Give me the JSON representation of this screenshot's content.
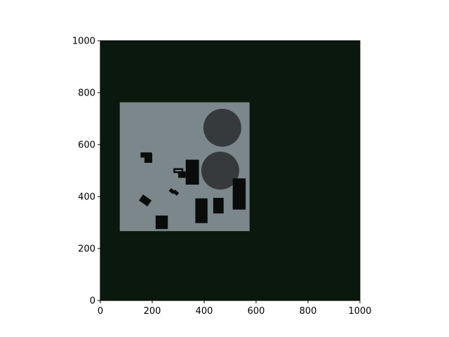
{
  "chart_data": {
    "type": "heatmap",
    "title": "",
    "xlabel": "",
    "ylabel": "",
    "xlim": [
      0,
      1000
    ],
    "ylim": [
      0,
      1000
    ],
    "x_ticks": [
      "0",
      "200",
      "400",
      "600",
      "800",
      "1000"
    ],
    "y_ticks": [
      "0",
      "200",
      "400",
      "600",
      "800",
      "1000"
    ],
    "x_tick_values": [
      0,
      200,
      400,
      600,
      800,
      1000
    ],
    "y_tick_values": [
      0,
      200,
      400,
      600,
      800,
      1000
    ],
    "grid": false,
    "colors": {
      "background": "#0a180d",
      "floor": "#7b878b",
      "obstacle": "#0a0b0b",
      "circle": "#363a3c",
      "axis": "#000000"
    },
    "floor_region": {
      "x0": 75,
      "x1": 575,
      "y0": 267,
      "y1": 763
    },
    "circles": [
      {
        "cx": 470,
        "cy": 665,
        "r": 73
      },
      {
        "cx": 462,
        "cy": 500,
        "r": 73
      }
    ],
    "obstacles": [
      {
        "x0": 213,
        "x1": 260,
        "y0": 275,
        "y1": 327
      },
      {
        "x0": 366,
        "x1": 413,
        "y0": 298,
        "y1": 393
      },
      {
        "x0": 329,
        "x1": 380,
        "y0": 446,
        "y1": 542
      },
      {
        "x0": 510,
        "x1": 560,
        "y0": 350,
        "y1": 470
      },
      {
        "x0": 435,
        "x1": 475,
        "y0": 335,
        "y1": 395
      },
      {
        "x0": 300,
        "x1": 329,
        "y0": 472,
        "y1": 497
      },
      {
        "x0": 155,
        "x1": 198,
        "y0": 550,
        "y1": 570
      },
      {
        "x0": 170,
        "x1": 200,
        "y0": 530,
        "y1": 567
      }
    ],
    "rotated_obstacles": [
      {
        "cx": 173,
        "cy": 385,
        "w": 40,
        "h": 28,
        "angle": 35
      },
      {
        "cx": 276,
        "cy": 421,
        "w": 20,
        "h": 14,
        "angle": 40
      },
      {
        "cx": 291,
        "cy": 415,
        "w": 20,
        "h": 14,
        "angle": 40
      }
    ],
    "outlined_obstacles": [
      {
        "x0": 281,
        "x1": 320,
        "y0": 490,
        "y1": 510
      }
    ]
  }
}
